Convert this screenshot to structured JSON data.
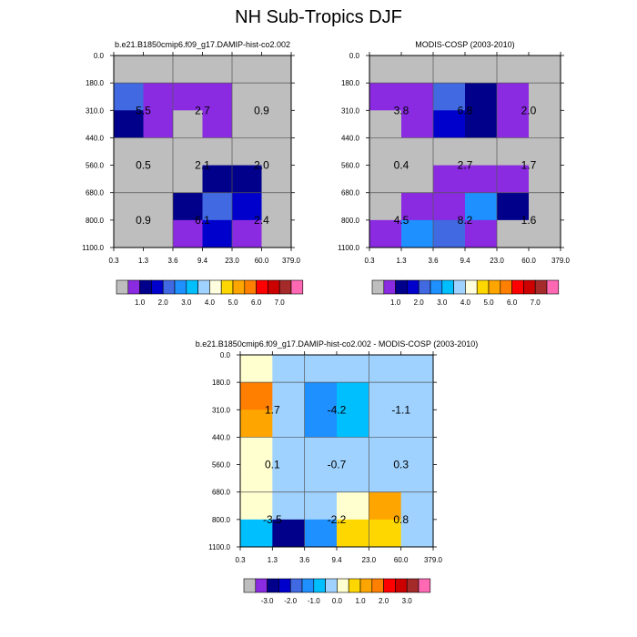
{
  "title": "NH Sub-Tropics DJF",
  "colors": {
    "abs": [
      "#bebebe",
      "#8a2be2",
      "#00008b",
      "#0000cd",
      "#4169e1",
      "#1e90ff",
      "#00bfff",
      "#a0d2ff",
      "#ffffe0",
      "#ffd700",
      "#ffa500",
      "#ff7f00",
      "#ff0000",
      "#cd0000",
      "#a52a2a",
      "#ff69b4"
    ],
    "diff": [
      "#bebebe",
      "#8a2be2",
      "#00008b",
      "#0000cd",
      "#4169e1",
      "#1e90ff",
      "#00bfff",
      "#a0d2ff",
      "#ffffd0",
      "#ffd700",
      "#ffa500",
      "#ff7f00",
      "#ff0000",
      "#cd0000",
      "#a52a2a",
      "#ff69b4"
    ]
  },
  "chart_data": [
    {
      "type": "heatmap",
      "title": "b.e21.B1850cmip6.f09_g17.DAMIP-hist-co2.002",
      "x_ticks": [
        "0.3",
        "1.3",
        "3.6",
        "9.4",
        "23.0",
        "60.0",
        "379.0"
      ],
      "y_ticks": [
        "0.0",
        "180.0",
        "310.0",
        "440.0",
        "560.0",
        "680.0",
        "800.0",
        "1100.0"
      ],
      "cell_classes": [
        [
          0,
          0,
          0,
          0,
          0,
          0
        ],
        [
          4,
          1,
          1,
          1,
          0,
          0
        ],
        [
          2,
          1,
          0,
          1,
          0,
          0
        ],
        [
          0,
          0,
          0,
          0,
          0,
          0
        ],
        [
          0,
          0,
          0,
          2,
          2,
          0
        ],
        [
          0,
          0,
          2,
          4,
          3,
          0
        ],
        [
          0,
          0,
          1,
          3,
          1,
          0
        ]
      ],
      "totals": [
        {
          "row": 0,
          "col": 0,
          "value": "5.5"
        },
        {
          "row": 0,
          "col": 1,
          "value": "2.7"
        },
        {
          "row": 0,
          "col": 2,
          "value": "0.9"
        },
        {
          "row": 1,
          "col": 0,
          "value": "0.5"
        },
        {
          "row": 1,
          "col": 1,
          "value": "2.1"
        },
        {
          "row": 1,
          "col": 2,
          "value": "2.0"
        },
        {
          "row": 2,
          "col": 0,
          "value": "0.9"
        },
        {
          "row": 2,
          "col": 1,
          "value": "6.1"
        },
        {
          "row": 2,
          "col": 2,
          "value": "2.4"
        }
      ],
      "colorbar_labels": [
        "1.0",
        "2.0",
        "3.0",
        "4.0",
        "5.0",
        "6.0",
        "7.0"
      ]
    },
    {
      "type": "heatmap",
      "title": "MODIS-COSP (2003-2010)",
      "x_ticks": [
        "0.3",
        "1.3",
        "3.6",
        "9.4",
        "23.0",
        "60.0",
        "379.0"
      ],
      "y_ticks": [
        "0.0",
        "180.0",
        "310.0",
        "440.0",
        "560.0",
        "680.0",
        "800.0",
        "1100.0"
      ],
      "cell_classes": [
        [
          0,
          0,
          0,
          0,
          0,
          0
        ],
        [
          1,
          1,
          4,
          2,
          1,
          0
        ],
        [
          0,
          1,
          3,
          2,
          1,
          0
        ],
        [
          0,
          0,
          0,
          0,
          0,
          0
        ],
        [
          0,
          0,
          1,
          1,
          1,
          0
        ],
        [
          0,
          1,
          1,
          5,
          2,
          0
        ],
        [
          1,
          5,
          4,
          1,
          0,
          0
        ]
      ],
      "totals": [
        {
          "row": 0,
          "col": 0,
          "value": "3.8"
        },
        {
          "row": 0,
          "col": 1,
          "value": "6.8"
        },
        {
          "row": 0,
          "col": 2,
          "value": "2.0"
        },
        {
          "row": 1,
          "col": 0,
          "value": "0.4"
        },
        {
          "row": 1,
          "col": 1,
          "value": "2.7"
        },
        {
          "row": 1,
          "col": 2,
          "value": "1.7"
        },
        {
          "row": 2,
          "col": 0,
          "value": "4.5"
        },
        {
          "row": 2,
          "col": 1,
          "value": "8.2"
        },
        {
          "row": 2,
          "col": 2,
          "value": "1.6"
        }
      ],
      "colorbar_labels": [
        "1.0",
        "2.0",
        "3.0",
        "4.0",
        "5.0",
        "6.0",
        "7.0"
      ]
    },
    {
      "type": "heatmap",
      "title": "b.e21.B1850cmip6.f09_g17.DAMIP-hist-co2.002 - MODIS-COSP (2003-2010)",
      "x_ticks": [
        "0.3",
        "1.3",
        "3.6",
        "9.4",
        "23.0",
        "60.0",
        "379.0"
      ],
      "y_ticks": [
        "0.0",
        "180.0",
        "310.0",
        "440.0",
        "560.0",
        "680.0",
        "800.0",
        "1100.0"
      ],
      "cell_classes": [
        [
          8,
          7,
          7,
          7,
          7,
          7
        ],
        [
          11,
          7,
          5,
          6,
          7,
          7
        ],
        [
          10,
          7,
          5,
          6,
          7,
          7
        ],
        [
          8,
          7,
          7,
          7,
          7,
          7
        ],
        [
          8,
          7,
          7,
          7,
          7,
          7
        ],
        [
          8,
          7,
          7,
          8,
          10,
          7
        ],
        [
          6,
          2,
          5,
          9,
          9,
          7
        ]
      ],
      "totals": [
        {
          "row": 0,
          "col": 0,
          "value": "1.7"
        },
        {
          "row": 0,
          "col": 1,
          "value": "-4.2"
        },
        {
          "row": 0,
          "col": 2,
          "value": "-1.1"
        },
        {
          "row": 1,
          "col": 0,
          "value": "0.1"
        },
        {
          "row": 1,
          "col": 1,
          "value": "-0.7"
        },
        {
          "row": 1,
          "col": 2,
          "value": "0.3"
        },
        {
          "row": 2,
          "col": 0,
          "value": "-3.5"
        },
        {
          "row": 2,
          "col": 1,
          "value": "-2.2"
        },
        {
          "row": 2,
          "col": 2,
          "value": "0.8"
        }
      ],
      "colorbar_labels": [
        "-3.0",
        "-2.0",
        "-1.0",
        "0.0",
        "1.0",
        "2.0",
        "3.0"
      ]
    }
  ]
}
